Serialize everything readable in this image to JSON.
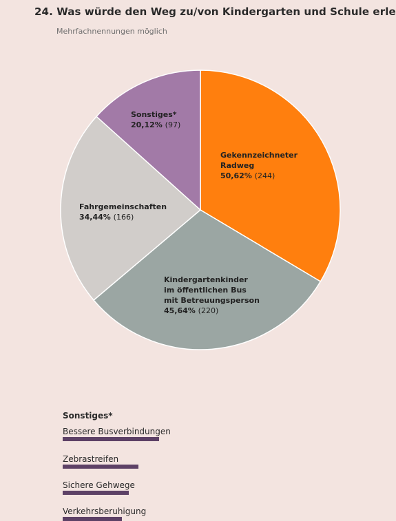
{
  "page": {
    "title": "24. Was würde den Weg zu/von Kindergarten und Schule erle",
    "subtitle": "Mehrfachnennungen möglich"
  },
  "chart_data": {
    "type": "pie",
    "slices": [
      {
        "lines": [
          "Gekennzeichneter",
          "Radweg"
        ],
        "percent_label": "50,62%",
        "count_label": "(244)",
        "value": 244,
        "color": "#ff7f0e"
      },
      {
        "lines": [
          "Kindergartenkinder",
          "im öffentlichen Bus",
          "mit Betreuungsperson"
        ],
        "percent_label": "45,64%",
        "count_label": "(220)",
        "value": 220,
        "color": "#9ba6a3"
      },
      {
        "lines": [
          "Fahrgemeinschaften"
        ],
        "percent_label": "34,44%",
        "count_label": "(166)",
        "value": 166,
        "color": "#d1cdca"
      },
      {
        "lines": [
          "Sonstiges*"
        ],
        "percent_label": "20,12%",
        "count_label": "(97)",
        "value": 97,
        "color": "#a27aa7"
      }
    ]
  },
  "notes": {
    "title": "Sonstiges*",
    "bar_color": "#5d4166",
    "items": [
      {
        "label": "Bessere Busverbindungen",
        "value": 0.7
      },
      {
        "label": "Zebrastreifen",
        "value": 0.55
      },
      {
        "label": "Sichere Gehwege",
        "value": 0.48
      },
      {
        "label": "Verkehrsberuhigung",
        "value": 0.43
      }
    ]
  }
}
